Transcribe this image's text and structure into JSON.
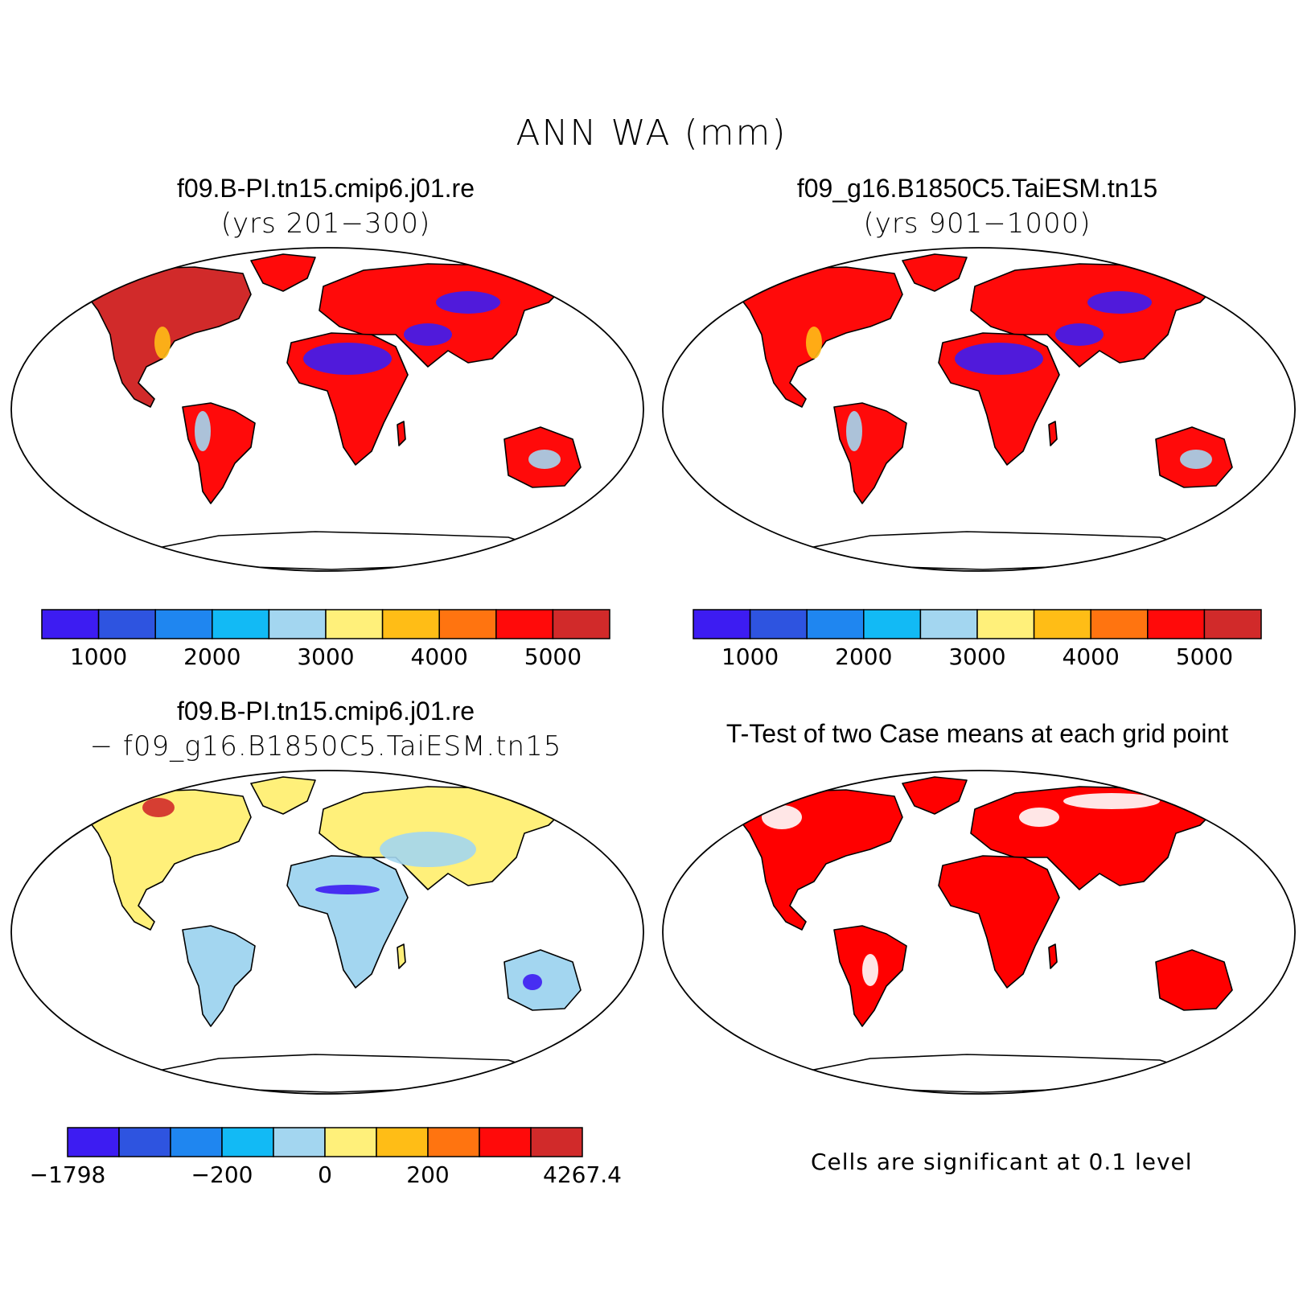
{
  "title": "ANN WA (mm)",
  "panels": {
    "top_left": {
      "title": "f09.B-PI.tn15.cmip6.j01.re",
      "subtitle": "(yrs 201−300)"
    },
    "top_right": {
      "title": "f09_g16.B1850C5.TaiESM.tn15",
      "subtitle": "(yrs 901−1000)"
    },
    "bottom_left": {
      "title": "f09.B-PI.tn15.cmip6.j01.re",
      "subtitle": "− f09_g16.B1850C5.TaiESM.tn15"
    },
    "bottom_right": {
      "title": "T-Test of two Case means at each grid point",
      "note": "Cells are significant at 0.1 level"
    }
  },
  "colorbars": {
    "absolute": {
      "colors": [
        "#3d1cf2",
        "#2e54e0",
        "#1f86f0",
        "#12baf5",
        "#a3d6f0",
        "#fff07a",
        "#ffbd16",
        "#ff7410",
        "#ff0a0a",
        "#d12a2a"
      ],
      "labels": [
        "1000",
        "2000",
        "3000",
        "4000",
        "5000"
      ]
    },
    "difference": {
      "colors": [
        "#3d1cf2",
        "#2e54e0",
        "#1f86f0",
        "#12baf5",
        "#a3d6f0",
        "#fff07a",
        "#ffbd16",
        "#ff7410",
        "#ff0a0a",
        "#d12a2a"
      ],
      "labels": [
        "−1798",
        "−200",
        "0",
        "200",
        "4267.4"
      ]
    }
  },
  "map_fills": {
    "absolute_left": "#ff0a0a",
    "absolute_right": "#ff0a0a",
    "difference": "#fff07a",
    "ttest": "#ff0000",
    "desert": "#3d1cf2",
    "north_america_left": "#d12a2a",
    "diff_africa": "#a3d6f0"
  }
}
